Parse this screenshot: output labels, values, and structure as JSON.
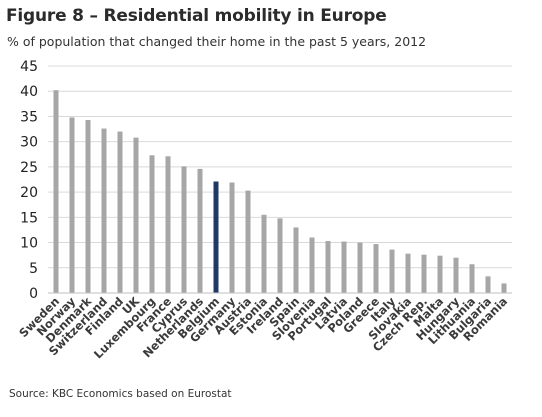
{
  "chart_data": {
    "type": "bar",
    "title": "Figure 8 – Residential mobility in Europe",
    "subtitle": "% of population that changed their home in the past 5 years, 2012",
    "source": "Source: KBC Economics based on Eurostat",
    "xlabel": "",
    "ylabel": "",
    "ylim": [
      0,
      45
    ],
    "yticks": [
      0,
      5,
      10,
      15,
      20,
      25,
      30,
      35,
      40,
      45
    ],
    "grid": true,
    "legend": "none",
    "categories": [
      "Sweden",
      "Norway",
      "Denmark",
      "Switzerland",
      "Finland",
      "UK",
      "Luxembourg",
      "France",
      "Cyprus",
      "Netherlands",
      "Belgium",
      "Germany",
      "Austria",
      "Estonia",
      "Ireland",
      "Spain",
      "Slovenia",
      "Portugal",
      "Latvia",
      "Poland",
      "Greece",
      "Italy",
      "Slovakia",
      "Czech Rep.",
      "Malta",
      "Hungary",
      "Lithuania",
      "Bulgaria",
      "Romania"
    ],
    "values": [
      40.2,
      34.8,
      34.3,
      32.6,
      32.0,
      30.8,
      27.3,
      27.1,
      25.1,
      24.6,
      22.1,
      21.9,
      20.3,
      15.5,
      14.8,
      13.0,
      11.0,
      10.3,
      10.2,
      10.0,
      9.7,
      8.6,
      7.8,
      7.6,
      7.4,
      7.0,
      5.7,
      3.3,
      1.9
    ],
    "colors": {
      "bar": "#a6a6a6",
      "highlight": "#1f3864",
      "grid": "#d9d9d9"
    },
    "highlight_category": "Belgium"
  }
}
